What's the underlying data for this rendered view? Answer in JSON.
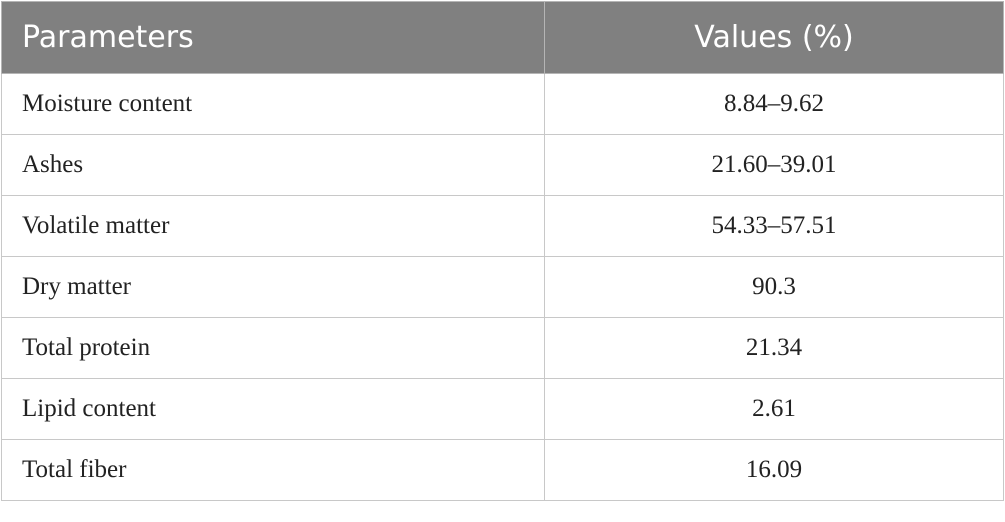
{
  "table": {
    "header": [
      "Parameters",
      "Values (%)"
    ],
    "rows": [
      [
        "Moisture content",
        "8.84–9.62"
      ],
      [
        "Ashes",
        "21.60–39.01"
      ],
      [
        "Volatile matter",
        "54.33–57.51"
      ],
      [
        "Dry matter",
        "90.3"
      ],
      [
        "Total protein",
        "21.34"
      ],
      [
        "Lipid content",
        "2.61"
      ],
      [
        "Total fiber",
        "16.09"
      ]
    ]
  }
}
